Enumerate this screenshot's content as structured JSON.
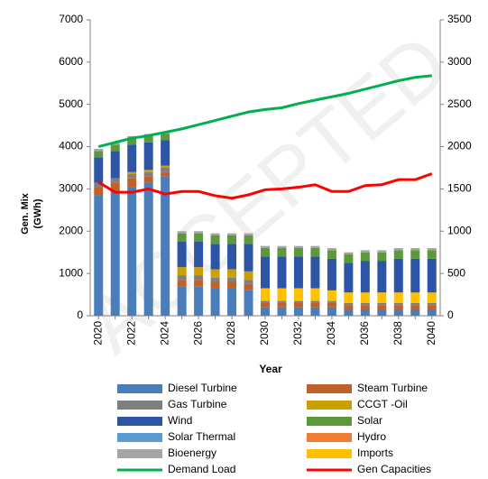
{
  "chart_data": {
    "type": "bar",
    "stacked": true,
    "watermark": "ACCEPTED",
    "x_label": "Year",
    "y_label": [
      "Gen. Mix",
      "(GWh)"
    ],
    "categories": [
      "2020",
      null,
      "2022",
      null,
      "2024",
      null,
      "2026",
      null,
      "2028",
      null,
      "2030",
      null,
      "2032",
      null,
      "2034",
      null,
      "2036",
      null,
      "2038",
      null,
      "2040"
    ],
    "ylim": [
      0,
      7000
    ],
    "yticks": [
      0,
      1000,
      2000,
      3000,
      4000,
      5000,
      6000,
      7000
    ],
    "y2lim": [
      0,
      3500
    ],
    "y2ticks": [
      0,
      500,
      1000,
      1500,
      2000,
      2500,
      3000,
      3500
    ],
    "series": [
      {
        "name": "Diesel Turbine",
        "color": "#4a7ebb",
        "values": [
          2850,
          2950,
          3050,
          3150,
          3300,
          700,
          700,
          650,
          650,
          600,
          200,
          200,
          200,
          200,
          200,
          150,
          150,
          150,
          150,
          150,
          150
        ]
      },
      {
        "name": "Steam Turbine",
        "color": "#c0612b",
        "values": [
          200,
          200,
          200,
          150,
          100,
          150,
          150,
          150,
          150,
          150,
          100,
          100,
          100,
          100,
          100,
          100,
          100,
          100,
          100,
          100,
          100
        ]
      },
      {
        "name": "Gas Turbine",
        "color": "#7f7f7f",
        "values": [
          100,
          100,
          100,
          100,
          100,
          100,
          100,
          100,
          100,
          100,
          50,
          50,
          50,
          50,
          50,
          50,
          50,
          50,
          50,
          50,
          50
        ]
      },
      {
        "name": "CCGT -Oil",
        "color": "#c9a000",
        "values": [
          0,
          0,
          50,
          50,
          50,
          200,
          200,
          200,
          200,
          200,
          0,
          0,
          0,
          0,
          0,
          0,
          0,
          0,
          0,
          0,
          0
        ]
      },
      {
        "name": "Imports",
        "color": "#ffc000",
        "values": [
          0,
          0,
          0,
          0,
          0,
          0,
          0,
          0,
          0,
          0,
          300,
          300,
          300,
          300,
          250,
          250,
          250,
          250,
          250,
          250,
          250
        ]
      },
      {
        "name": "Wind",
        "color": "#2e55a5",
        "values": [
          600,
          650,
          650,
          650,
          600,
          600,
          600,
          600,
          600,
          650,
          750,
          750,
          750,
          750,
          750,
          700,
          750,
          750,
          800,
          800,
          800
        ]
      },
      {
        "name": "Solar",
        "color": "#5a9a3a",
        "values": [
          150,
          150,
          150,
          150,
          150,
          200,
          200,
          200,
          200,
          200,
          200,
          200,
          200,
          200,
          200,
          200,
          200,
          200,
          200,
          200,
          200
        ]
      },
      {
        "name": "Solar Thermal",
        "color": "#5b9bd5",
        "values": [
          0,
          0,
          0,
          0,
          0,
          0,
          0,
          0,
          0,
          0,
          0,
          0,
          0,
          0,
          0,
          0,
          0,
          0,
          0,
          0,
          0
        ]
      },
      {
        "name": "Hydro",
        "color": "#ed7d31",
        "values": [
          0,
          0,
          0,
          0,
          0,
          0,
          0,
          0,
          0,
          0,
          0,
          0,
          0,
          0,
          0,
          0,
          0,
          0,
          0,
          0,
          0
        ]
      },
      {
        "name": "Bioenergy",
        "color": "#a5a5a5",
        "values": [
          50,
          50,
          50,
          50,
          50,
          50,
          50,
          50,
          50,
          50,
          50,
          50,
          50,
          50,
          50,
          50,
          50,
          50,
          50,
          50,
          50
        ]
      },
      {
        "name": "Demand Load",
        "type": "line",
        "axis": "y2",
        "color": "#00b050",
        "values": [
          2000,
          2050,
          2100,
          2130,
          2170,
          2210,
          2260,
          2310,
          2360,
          2410,
          2440,
          2460,
          2510,
          2550,
          2590,
          2630,
          2680,
          2730,
          2780,
          2820,
          2840
        ]
      },
      {
        "name": "Gen Capacities",
        "type": "line",
        "axis": "y2",
        "color": "#ff0000",
        "values": [
          1580,
          1460,
          1460,
          1500,
          1440,
          1470,
          1470,
          1420,
          1390,
          1430,
          1490,
          1500,
          1520,
          1550,
          1470,
          1470,
          1540,
          1550,
          1610,
          1610,
          1680
        ]
      }
    ]
  }
}
